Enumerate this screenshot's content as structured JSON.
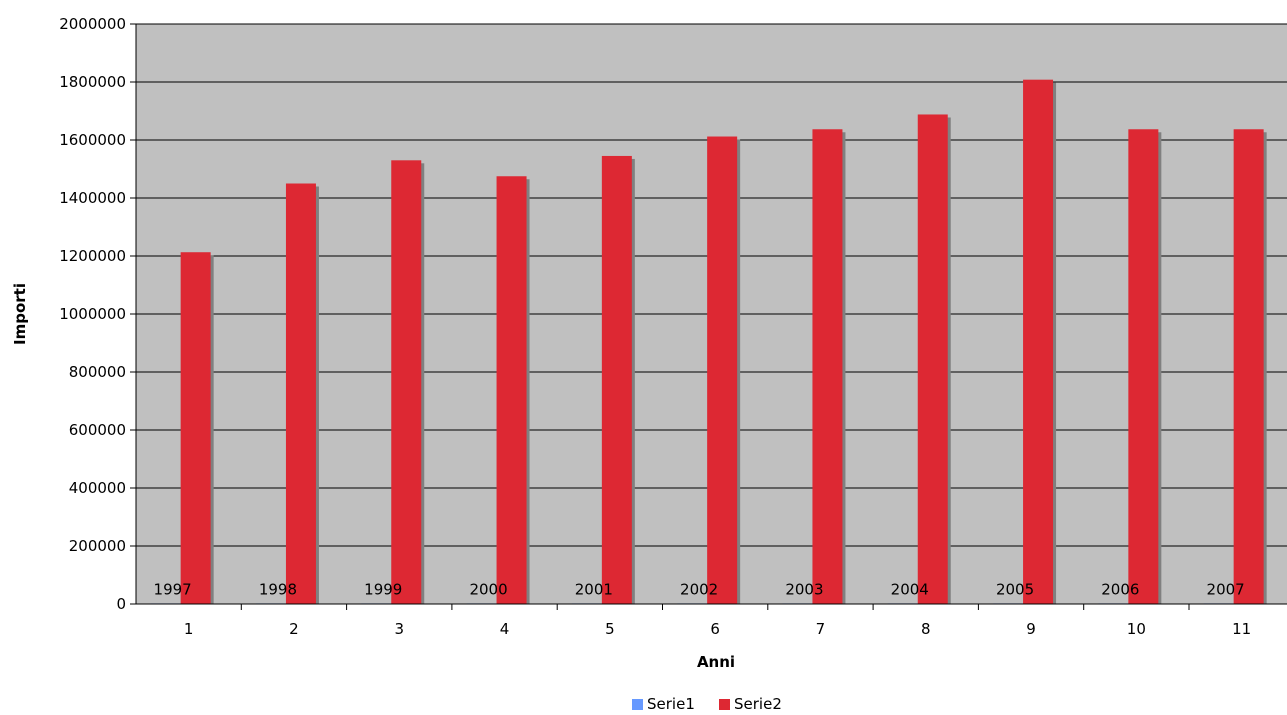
{
  "chart_data": {
    "type": "bar",
    "title": "",
    "xlabel": "Anni",
    "ylabel": "Importi",
    "categories": [
      "1",
      "2",
      "3",
      "4",
      "5",
      "6",
      "7",
      "8",
      "9",
      "10",
      "11"
    ],
    "series": [
      {
        "name": "Serie1",
        "values": [
          1997,
          1998,
          1999,
          2000,
          2001,
          2002,
          2003,
          2004,
          2005,
          2006,
          2007
        ],
        "data_labels": [
          "1997",
          "1998",
          "1999",
          "2000",
          "2001",
          "2002",
          "2003",
          "2004",
          "2005",
          "2006",
          "2007"
        ],
        "color": "#6699ff"
      },
      {
        "name": "Serie2",
        "values": [
          1213000,
          1450000,
          1530000,
          1475000,
          1545000,
          1612000,
          1637000,
          1688000,
          1808000,
          1637000,
          1637000
        ],
        "color": "#dd2833"
      }
    ],
    "ylim": [
      0,
      2000000
    ],
    "yticks": [
      "0",
      "200000",
      "400000",
      "600000",
      "800000",
      "1000000",
      "1200000",
      "1400000",
      "1600000",
      "1800000",
      "2000000"
    ],
    "grid": true,
    "plot_background": "#c0c0c0",
    "legend_position": "bottom"
  }
}
